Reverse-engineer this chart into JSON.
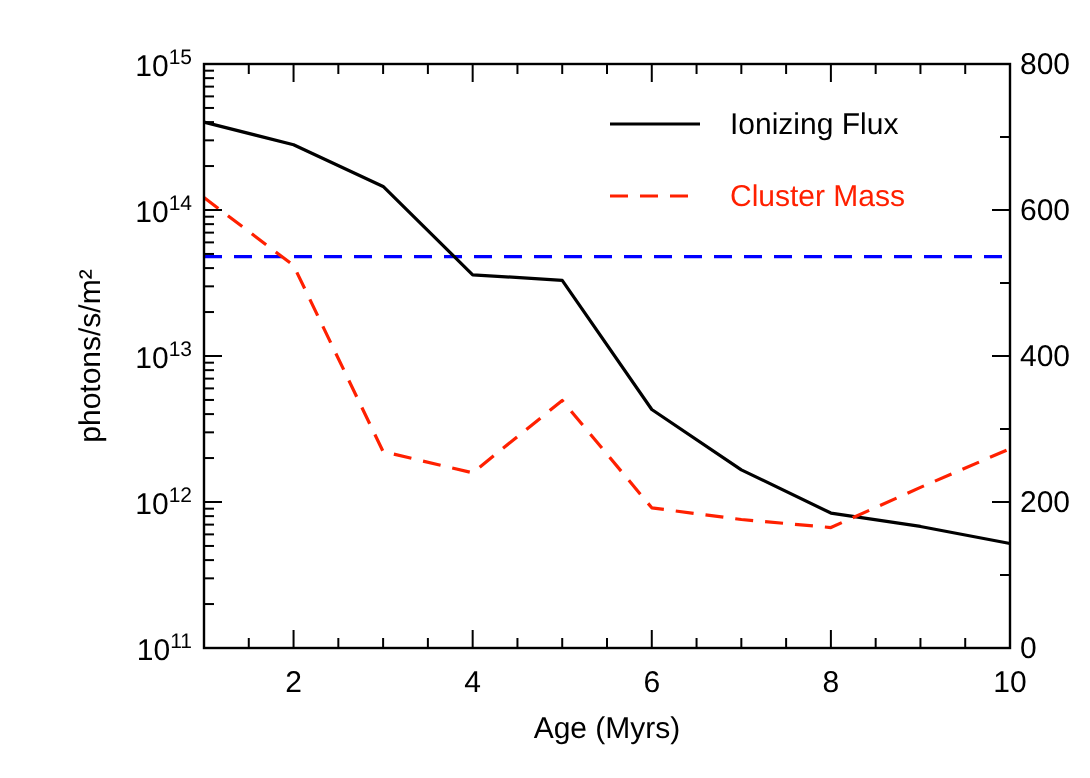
{
  "chart_data": {
    "type": "line",
    "xlabel": "Age (Myrs)",
    "ylabel": "photons/s/m²",
    "x": [
      1,
      2,
      3,
      4,
      5,
      6,
      7,
      8,
      9,
      10
    ],
    "series": [
      {
        "name": "Ionizing Flux",
        "color": "#000000",
        "line_style": "solid",
        "values": [
          400000000000000.0,
          280000000000000.0,
          145000000000000.0,
          36000000000000.0,
          33000000000000.0,
          4300000000000.0,
          1660000000000.0,
          840000000000.0,
          680000000000.0,
          520000000000.0
        ]
      },
      {
        "name": "Cluster Mass",
        "color": "#ff2000",
        "line_style": "dashed",
        "axis": "y2",
        "values": [
          617,
          524,
          269,
          240,
          339,
          192,
          176,
          165,
          220,
          273
        ]
      }
    ],
    "ref_lines": [
      {
        "axis": "y",
        "value": 48000000000000.0,
        "color": "#0000ff",
        "line_style": "dashed"
      }
    ],
    "log": "y",
    "xlim": [
      1,
      10
    ],
    "xticks": [
      {
        "value": 1.5,
        "label": null
      },
      2,
      {
        "value": 2.5,
        "label": null
      },
      {
        "value": 3,
        "label": null
      },
      {
        "value": 3.5,
        "label": null
      },
      4,
      {
        "value": 4.5,
        "label": null
      },
      {
        "value": 5,
        "label": null
      },
      {
        "value": 5.5,
        "label": null
      },
      6,
      {
        "value": 6.5,
        "label": null
      },
      {
        "value": 7,
        "label": null
      },
      {
        "value": 7.5,
        "label": null
      },
      8,
      {
        "value": 8.5,
        "label": null
      },
      {
        "value": 9,
        "label": null
      },
      {
        "value": 9.5,
        "label": null
      },
      10
    ],
    "ylim": [
      100000000000.0,
      1000000000000000.0
    ],
    "yticks": [
      {
        "value": 100000000000.0,
        "label": "10$^{11}$"
      },
      {
        "value": 200000000000.0,
        "label": null
      },
      {
        "value": 300000000000.0,
        "label": null
      },
      {
        "value": 400000000000.0,
        "label": null
      },
      {
        "value": 500000000000.0,
        "label": null
      },
      {
        "value": 600000000000.0,
        "label": null
      },
      {
        "value": 700000000000.0,
        "label": null
      },
      {
        "value": 800000000000.0,
        "label": null
      },
      {
        "value": 900000000000.0,
        "label": null
      },
      {
        "value": 1000000000000.0,
        "label": "10$^{12}$"
      },
      {
        "value": 2000000000000.0,
        "label": null
      },
      {
        "value": 3000000000000.0,
        "label": null
      },
      {
        "value": 4000000000000.0,
        "label": null
      },
      {
        "value": 5000000000000.0,
        "label": null
      },
      {
        "value": 6000000000000.0,
        "label": null
      },
      {
        "value": 7000000000000.0,
        "label": null
      },
      {
        "value": 8000000000000.0,
        "label": null
      },
      {
        "value": 9000000000000.0,
        "label": null
      },
      {
        "value": 10000000000000.0,
        "label": "10$^{13}$"
      },
      {
        "value": 20000000000000.0,
        "label": null
      },
      {
        "value": 30000000000000.0,
        "label": null
      },
      {
        "value": 40000000000000.0,
        "label": null
      },
      {
        "value": 50000000000000.0,
        "label": null
      },
      {
        "value": 60000000000000.0,
        "label": null
      },
      {
        "value": 70000000000000.0,
        "label": null
      },
      {
        "value": 80000000000000.0,
        "label": null
      },
      {
        "value": 90000000000000.0,
        "label": null
      },
      {
        "value": 100000000000000.0,
        "label": "10$^{14}$"
      },
      {
        "value": 200000000000000.0,
        "label": null
      },
      {
        "value": 300000000000000.0,
        "label": null
      },
      {
        "value": 400000000000000.0,
        "label": null
      },
      {
        "value": 500000000000000.0,
        "label": null
      },
      {
        "value": 600000000000000.0,
        "label": null
      },
      {
        "value": 700000000000000.0,
        "label": null
      },
      {
        "value": 800000000000000.0,
        "label": null
      },
      {
        "value": 900000000000000.0,
        "label": null
      },
      {
        "value": 1000000000000000.0,
        "label": "10$^{15}$"
      }
    ],
    "y2lim": [
      0,
      800
    ],
    "y2ticks": [
      0,
      {
        "value": 100,
        "label": null
      },
      200,
      {
        "value": 300,
        "label": null
      },
      400,
      {
        "value": 500,
        "label": null
      },
      600,
      {
        "value": 700,
        "label": null
      },
      800
    ],
    "legend": "top right",
    "grid": false
  }
}
